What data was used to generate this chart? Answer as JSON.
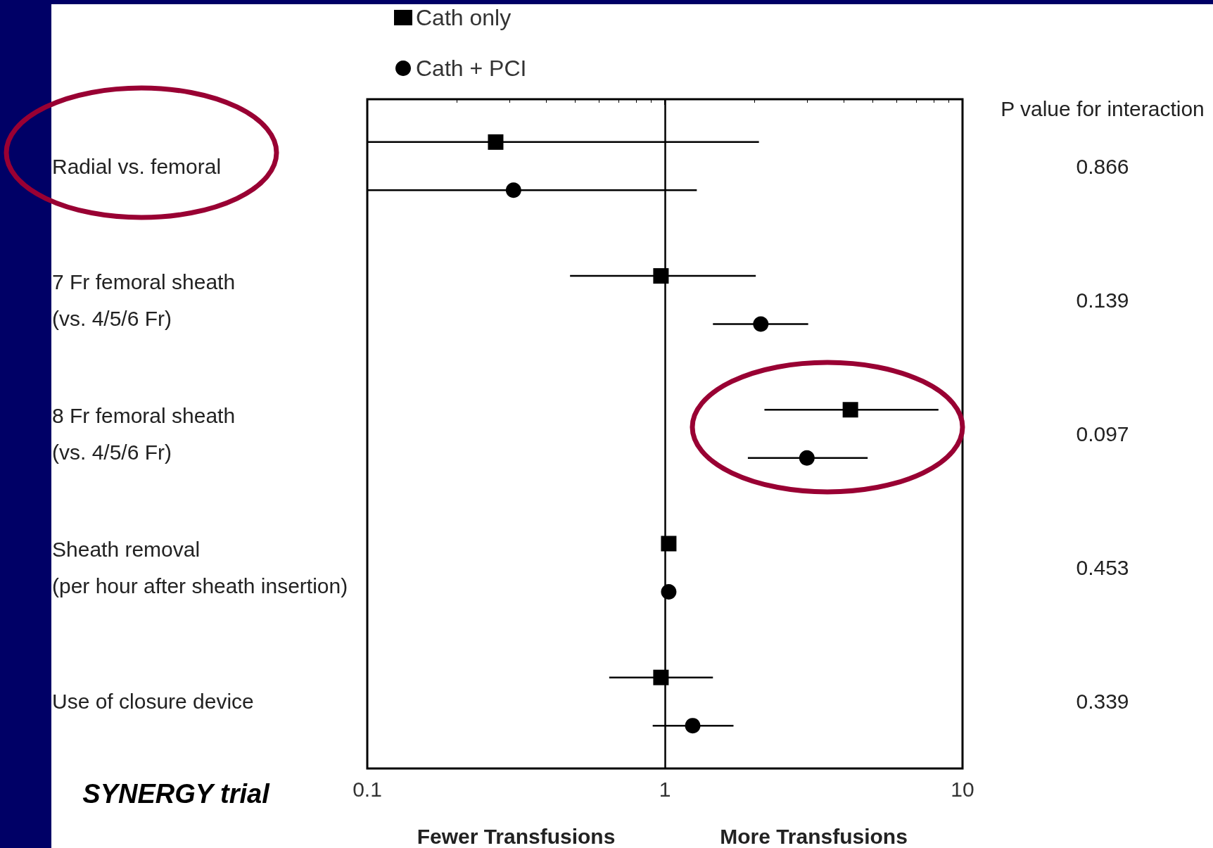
{
  "chart_data": {
    "type": "scatter",
    "orientation": "horizontal",
    "categories": [
      "Radial vs. femoral",
      "7 Fr femoral sheath\n(vs. 4/5/6 Fr)",
      "8 Fr femoral sheath\n(vs. 4/5/6 Fr)",
      "Sheath removal\n(per hour after sheath insertion)",
      "Use of closure device"
    ],
    "series": [
      {
        "name": "Cath only",
        "color": "#000000",
        "marker": "square",
        "values": [
          0.27,
          0.97,
          4.2,
          1.03,
          0.97
        ],
        "errors": [
          [
            0.1,
            2.07
          ],
          [
            0.48,
            2.02
          ],
          [
            2.16,
            8.3
          ],
          null,
          [
            0.65,
            1.45
          ]
        ]
      },
      {
        "name": "Cath + PCI",
        "color": "#000000",
        "marker": "circle",
        "values": [
          0.31,
          2.1,
          3.0,
          1.03,
          1.24
        ],
        "errors": [
          [
            0.1,
            1.28
          ],
          [
            1.45,
            3.03
          ],
          [
            1.9,
            4.8
          ],
          null,
          [
            0.91,
            1.7
          ]
        ]
      }
    ],
    "log": "x",
    "xlim": [
      0.1,
      10
    ],
    "xticks": [
      0.1,
      1,
      10
    ],
    "grid": false,
    "legend": "top",
    "ref_lines": [
      {
        "axis": "x",
        "value": 1,
        "color": "#000000"
      }
    ],
    "annotations": [
      "P value for interaction",
      "0.866",
      "0.139",
      "0.097",
      "0.453",
      "0.339",
      "Fewer Transfusions",
      "More Transfusions",
      "SYNERGY trial"
    ]
  }
}
